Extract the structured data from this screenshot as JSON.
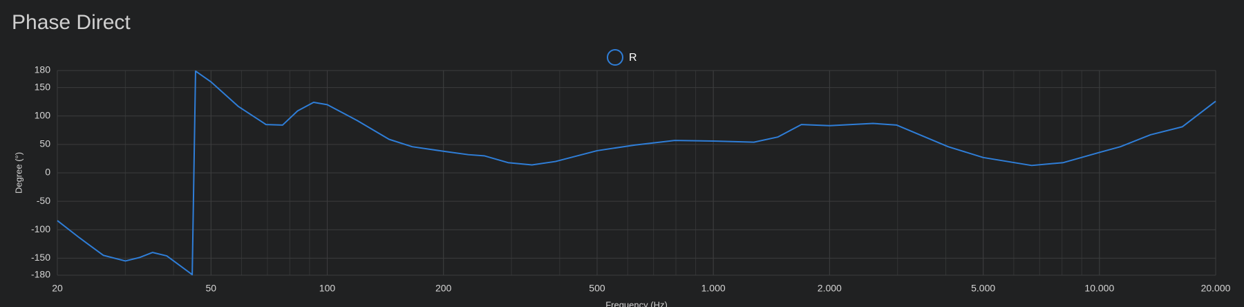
{
  "chart_data": {
    "type": "line",
    "title": "Phase Direct",
    "x_label": "Frequency (Hz)",
    "y_label": "Degree (°)",
    "log_x": true,
    "grid": true,
    "legend": "top",
    "x": [
      20,
      22.8,
      26.3,
      30,
      32.6,
      35.3,
      38.4,
      44.7,
      45.6,
      50,
      58.8,
      69.4,
      76.6,
      83.8,
      92.2,
      100,
      119.6,
      144.6,
      166,
      200,
      232,
      255,
      294,
      339,
      390,
      500,
      627,
      794,
      1000,
      1274,
      1468,
      1691,
      2000,
      2590,
      2985,
      4058,
      5000,
      6676,
      8060,
      10000,
      11330,
      13560,
      16390,
      20000
    ],
    "series": [
      {
        "name": "R",
        "color": "#2f7ed8",
        "values": [
          -84,
          -114,
          -145,
          -155,
          -149,
          -140,
          -146,
          -179,
          179,
          160,
          117,
          85,
          84,
          109,
          124,
          120,
          92,
          59,
          46,
          38,
          32,
          30,
          18,
          14,
          20,
          39,
          49,
          57,
          56,
          54,
          63,
          85,
          83,
          87,
          84,
          46,
          27,
          13,
          18,
          36,
          46,
          67,
          81,
          126
        ]
      }
    ],
    "xlim": [
      20,
      20000
    ],
    "xticks": [
      20,
      50,
      100,
      200,
      500,
      {
        "value": 1000,
        "label": "1.000"
      },
      {
        "value": 2000,
        "label": "2.000"
      },
      {
        "value": 5000,
        "label": "5.000"
      },
      {
        "value": 10000,
        "label": "10.000"
      },
      {
        "value": 20000,
        "label": "20.000"
      }
    ],
    "ylim": [
      -180,
      180
    ],
    "yticks": [
      -180,
      -150,
      -100,
      -50,
      0,
      50,
      100,
      150,
      180
    ]
  }
}
